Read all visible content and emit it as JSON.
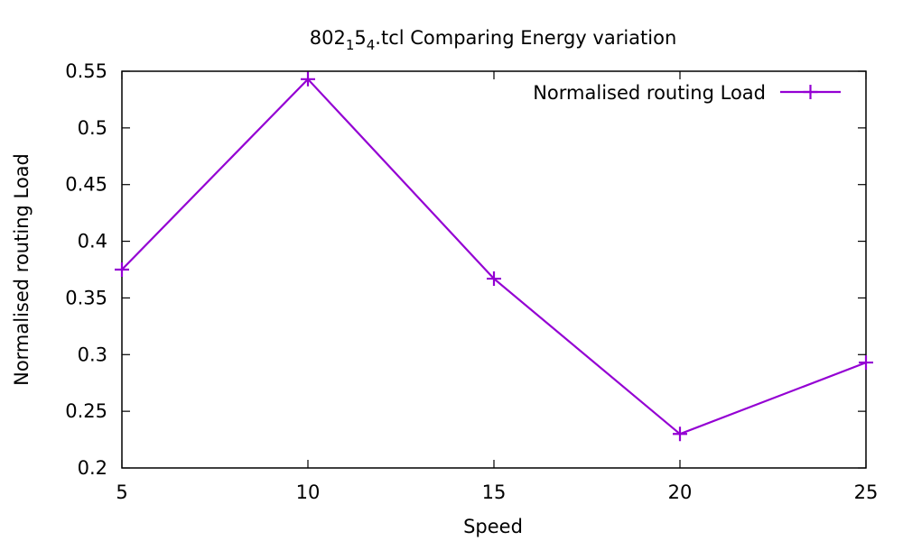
{
  "chart_data": {
    "type": "line",
    "title": {
      "prefix": "802",
      "sub1": "1",
      "mid": "5",
      "sub2": "4",
      "suffix": ".tcl Comparing Energy variation"
    },
    "xlabel": "Speed",
    "ylabel": "Normalised routing Load",
    "xlim": [
      5,
      25
    ],
    "ylim": [
      0.2,
      0.55
    ],
    "x_ticks": [
      "5",
      "10",
      "15",
      "20",
      "25"
    ],
    "x_tick_values": [
      5,
      10,
      15,
      20,
      25
    ],
    "y_ticks": [
      "0.2",
      "0.25",
      "0.3",
      "0.35",
      "0.4",
      "0.45",
      "0.5",
      "0.55"
    ],
    "y_tick_values": [
      0.2,
      0.25,
      0.3,
      0.35,
      0.4,
      0.45,
      0.5,
      0.55
    ],
    "grid": false,
    "legend_position": "top-right",
    "series": [
      {
        "name": "Normalised routing Load",
        "color": "#9400d3",
        "marker": "plus",
        "x": [
          5,
          10,
          15,
          20,
          25
        ],
        "values": [
          0.375,
          0.543,
          0.367,
          0.23,
          0.293
        ]
      }
    ]
  }
}
